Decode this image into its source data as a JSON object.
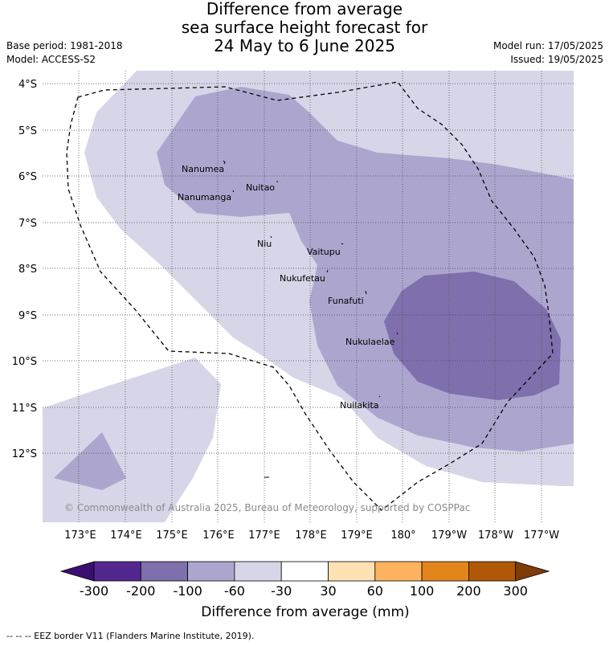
{
  "title": {
    "line1": "Difference from average",
    "line2": "sea surface height forecast for",
    "line3": "24 May to 6 June 2025"
  },
  "meta_left": {
    "base_period": "Base period: 1981-2018",
    "model": "Model: ACCESS-S2"
  },
  "meta_right": {
    "model_run": "Model run: 17/05/2025",
    "issued": "Issued: 19/05/2025"
  },
  "map": {
    "lat_labels": [
      "4°S",
      "5°S",
      "6°S",
      "7°S",
      "8°S",
      "9°S",
      "10°S",
      "11°S",
      "12°S"
    ],
    "lon_labels": [
      "173°E",
      "174°E",
      "175°E",
      "176°E",
      "177°E",
      "178°E",
      "179°E",
      "180°",
      "179°W",
      "178°W",
      "177°W"
    ],
    "islands": [
      "Nanumea",
      "Nuitao",
      "Nanumanga",
      "Niu",
      "Vaitupu",
      "Nukufetau",
      "Funafuti",
      "Nukulaelae",
      "Nuilakita"
    ],
    "copyright": "© Commonwealth of Australia 2025, Bureau of Meteorology, supported by COSPPac"
  },
  "colorbar": {
    "ticks": [
      "-300",
      "-200",
      "-100",
      "-60",
      "-30",
      "30",
      "60",
      "100",
      "200",
      "300"
    ],
    "colors": [
      "#3b0f6f",
      "#54278f",
      "#7f6fac",
      "#aca6cf",
      "#d7d6e8",
      "#ffffff",
      "#ffe2b4",
      "#fdb35d",
      "#e2851b",
      "#b05808",
      "#7f3b08"
    ],
    "label": "Difference from average (mm)"
  },
  "footer": "--  --  -- EEZ border V11 (Flanders Marine Institute, 2019)."
}
